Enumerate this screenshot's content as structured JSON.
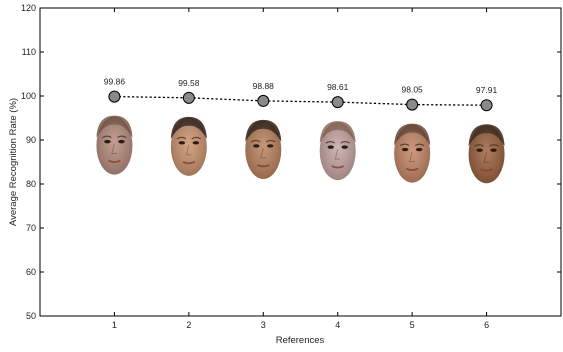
{
  "chart_data": {
    "type": "line",
    "title": "",
    "xlabel": "References",
    "ylabel": "Average Recognition Rate (%)",
    "x": [
      1,
      2,
      3,
      4,
      5,
      6
    ],
    "xlim": [
      0,
      7
    ],
    "ylim": [
      50,
      120
    ],
    "x_ticks": [
      "1",
      "2",
      "3",
      "4",
      "5",
      "6"
    ],
    "y_ticks": [
      "50",
      "60",
      "70",
      "80",
      "90",
      "100",
      "110",
      "120"
    ],
    "series": [
      {
        "values": [
          99.86,
          99.58,
          98.88,
          98.61,
          98.05,
          97.91
        ],
        "labels": [
          "99.86",
          "99.58",
          "98.88",
          "98.61",
          "98.05",
          "97.91"
        ],
        "line_style": "dotted",
        "marker": "circle",
        "marker_fill": "#8a8a8a",
        "line_color": "#000000"
      }
    ],
    "images": {
      "description_icons": [
        "face-icon",
        "face-icon",
        "face-icon",
        "face-icon",
        "face-icon",
        "face-icon"
      ],
      "skin_tones": [
        "#b5897a",
        "#c9916c",
        "#b9805b",
        "#c4a3a0",
        "#c28463",
        "#9a5f3b"
      ],
      "hair_tones": [
        "#7a5a48",
        "#2a1a14",
        "#2b1c14",
        "#8f6a55",
        "#6b4332",
        "#3a2418"
      ]
    },
    "grid": false,
    "legend": "none"
  }
}
